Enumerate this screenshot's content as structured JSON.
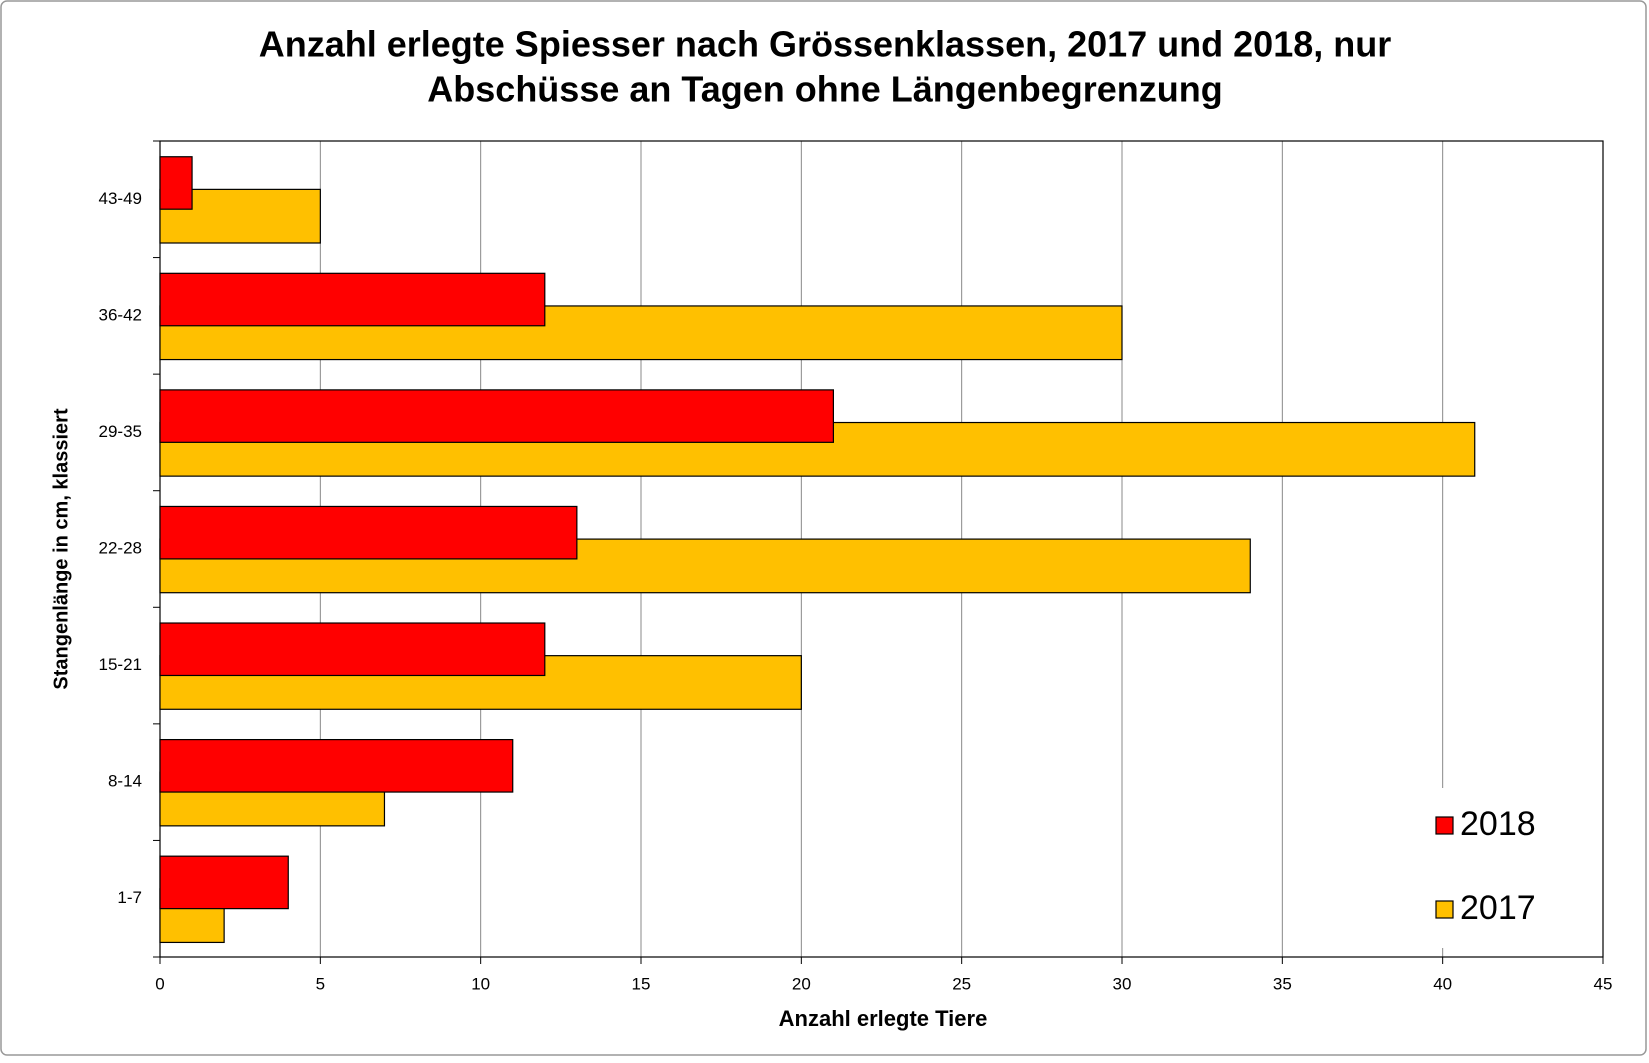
{
  "chart_data": {
    "type": "bar",
    "orientation": "horizontal",
    "title": "Anzahl erlegte Spiesser nach Grössenklassen, 2017 und 2018, nur",
    "subtitle": "Abschüsse an Tagen ohne Längenbegrenzung",
    "x_label": "Anzahl erlegte Tiere",
    "y_label": "Stangenlänge in cm, klassiert",
    "categories": [
      "1-7",
      "8-14",
      "15-21",
      "22-28",
      "29-35",
      "36-42",
      "43-49"
    ],
    "series": [
      {
        "name": "2018",
        "color": "#ff0000",
        "values": [
          4,
          11,
          12,
          13,
          21,
          12,
          1
        ]
      },
      {
        "name": "2017",
        "color": "#ffc000",
        "values": [
          2,
          7,
          20,
          34,
          41,
          30,
          5
        ]
      }
    ],
    "xlim": [
      0,
      45
    ],
    "xticks": [
      0,
      5,
      10,
      15,
      20,
      25,
      30,
      35,
      40,
      45
    ],
    "grid": true,
    "legend": "bottom-right"
  }
}
